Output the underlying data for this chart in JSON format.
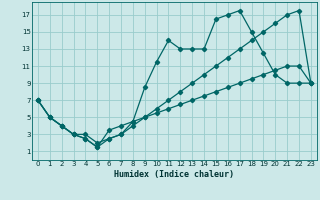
{
  "title": "",
  "xlabel": "Humidex (Indice chaleur)",
  "background_color": "#cce8e8",
  "grid_color": "#99cccc",
  "line_color": "#006666",
  "xlim": [
    -0.5,
    23.5
  ],
  "ylim": [
    0,
    18.5
  ],
  "xticks": [
    0,
    1,
    2,
    3,
    4,
    5,
    6,
    7,
    8,
    9,
    10,
    11,
    12,
    13,
    14,
    15,
    16,
    17,
    18,
    19,
    20,
    21,
    22,
    23
  ],
  "yticks": [
    1,
    3,
    5,
    7,
    9,
    11,
    13,
    15,
    17
  ],
  "line1_x": [
    0,
    1,
    2,
    3,
    4,
    5,
    6,
    7,
    8,
    9,
    10,
    11,
    12,
    13,
    14,
    15,
    16,
    17,
    18,
    19,
    20,
    21,
    22,
    23
  ],
  "line1_y": [
    7,
    5,
    4,
    3,
    2.5,
    1.5,
    2.5,
    3,
    4.5,
    8.5,
    11.5,
    14,
    13,
    13,
    13,
    16.5,
    17,
    17.5,
    15,
    12.5,
    10,
    9,
    9,
    9
  ],
  "line2_x": [
    0,
    1,
    2,
    3,
    4,
    5,
    6,
    7,
    8,
    9,
    10,
    11,
    12,
    13,
    14,
    15,
    16,
    17,
    18,
    19,
    20,
    21,
    22,
    23
  ],
  "line2_y": [
    7,
    5,
    4,
    3,
    3,
    2,
    2.5,
    3,
    4,
    5,
    6,
    7,
    8,
    9,
    10,
    11,
    12,
    13,
    14,
    15,
    16,
    17,
    17.5,
    9
  ],
  "line3_x": [
    0,
    1,
    2,
    3,
    4,
    5,
    6,
    7,
    8,
    9,
    10,
    11,
    12,
    13,
    14,
    15,
    16,
    17,
    18,
    19,
    20,
    21,
    22,
    23
  ],
  "line3_y": [
    7,
    5,
    4,
    3,
    2.5,
    1.5,
    3.5,
    4,
    4.5,
    5,
    5.5,
    6,
    6.5,
    7,
    7.5,
    8,
    8.5,
    9,
    9.5,
    10,
    10.5,
    11,
    11,
    9
  ]
}
